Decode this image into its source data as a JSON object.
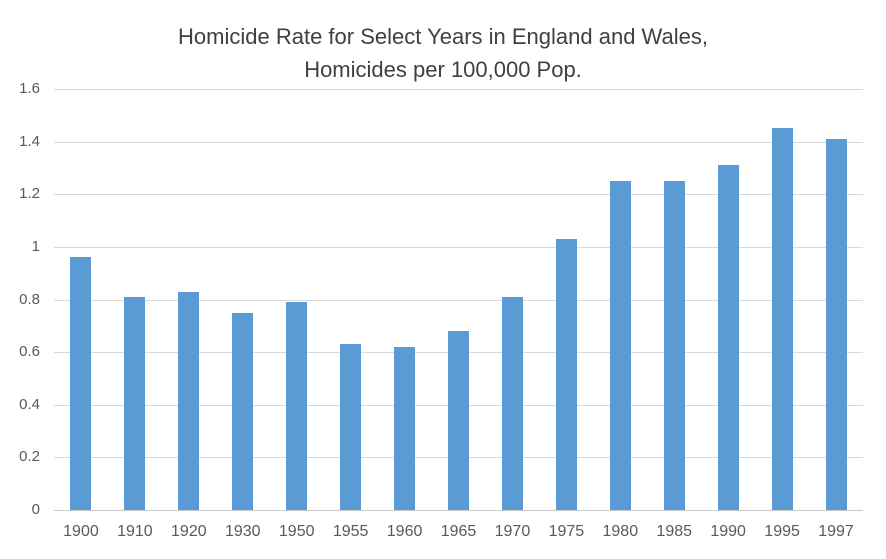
{
  "title": {
    "line1": "Homicide Rate for Select Years in England and Wales,",
    "line2": "Homicides per 100,000 Pop."
  },
  "colors": {
    "bar": "#5B9BD5",
    "gridline": "#D9D9D9",
    "axis_line": "#C9C9C9",
    "tick_text": "#595959",
    "title_text": "#404040",
    "background": "#FFFFFF"
  },
  "chart_data": {
    "type": "bar",
    "title": "Homicide Rate for Select Years in England and Wales, Homicides per 100,000 Pop.",
    "categories": [
      "1900",
      "1910",
      "1920",
      "1930",
      "1950",
      "1955",
      "1960",
      "1965",
      "1970",
      "1975",
      "1980",
      "1985",
      "1990",
      "1995",
      "1997"
    ],
    "values": [
      0.96,
      0.81,
      0.83,
      0.75,
      0.79,
      0.63,
      0.62,
      0.68,
      0.81,
      1.03,
      1.25,
      1.25,
      1.31,
      1.45,
      1.41
    ],
    "xlabel": "",
    "ylabel": "",
    "ylim": [
      0,
      1.6
    ],
    "yticks": [
      0,
      0.2,
      0.4,
      0.6,
      0.8,
      1,
      1.2,
      1.4,
      1.6
    ],
    "ytick_labels": [
      "0",
      "0.2",
      "0.4",
      "0.6",
      "0.8",
      "1",
      "1.2",
      "1.4",
      "1.6"
    ],
    "grid": true,
    "legend": false
  }
}
